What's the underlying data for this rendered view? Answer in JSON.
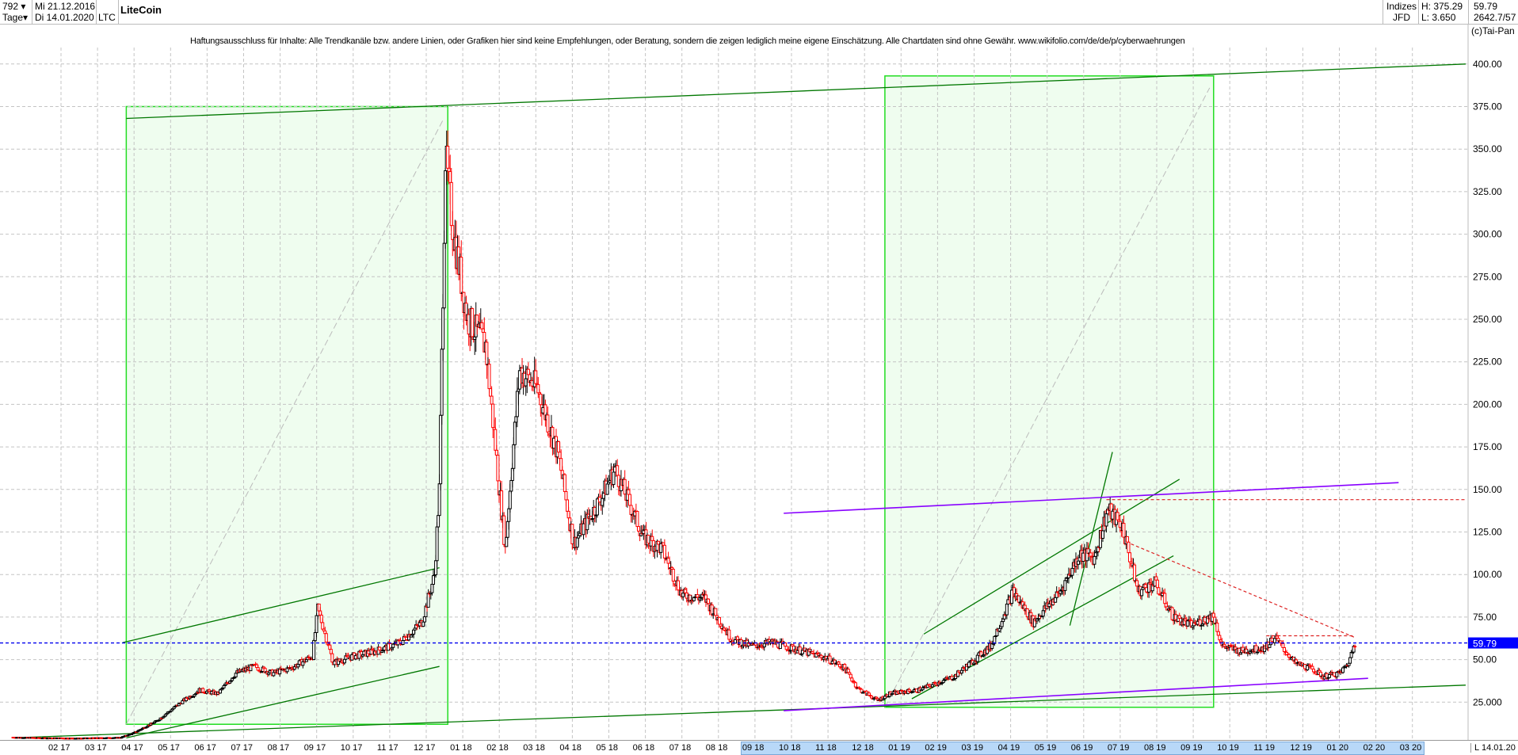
{
  "header": {
    "count": "792",
    "period": "Tage",
    "start_date": "Mi 21.12.2016",
    "end_date": "Di 14.01.2020",
    "symbol": "LTC",
    "title": "LiteCoin",
    "market": "Indizes",
    "exchange": "JFD",
    "high": "H: 375.29",
    "low": "L: 3.650",
    "last": "59.79",
    "extra": "2642.7/57",
    "copyright": "(c)Tai-Pan"
  },
  "disclaimer": "Haftungsausschluss für Inhalte: Alle Trendkanäle bzw. andere Linien, oder Grafiken hier sind keine Empfehlungen, oder Beratung, sondern die zeigen lediglich meine eigene Einschätzung. Alle Chartdaten sind ohne Gewähr.  www.wikifolio.com/de/de/p/cyberwaehrungen",
  "footer": {
    "mode": "L",
    "date": "14.01.20"
  },
  "colors": {
    "up": "#000000",
    "down": "#ff0000",
    "box_fill": "#effdef",
    "box_border": "#22dd22",
    "trend": "#007700",
    "purple": "#8800ff",
    "last_line": "#0000ee",
    "price_tag": "#0000ff"
  },
  "chart_data": {
    "type": "candlestick",
    "title": "LiteCoin",
    "ylim": [
      0,
      400
    ],
    "yticks": [
      "25.000",
      "50.00",
      "75.00",
      "100.00",
      "125.00",
      "150.00",
      "175.00",
      "200.00",
      "225.00",
      "250.00",
      "275.00",
      "300.00",
      "325.00",
      "350.00",
      "375.00",
      "400.00"
    ],
    "xticks": [
      "02 17",
      "03 17",
      "04 17",
      "05 17",
      "06 17",
      "07 17",
      "08 17",
      "09 17",
      "10 17",
      "11 17",
      "12 17",
      "01 18",
      "02 18",
      "03 18",
      "04 18",
      "05 18",
      "06 18",
      "07 18",
      "08 18",
      "09 18",
      "10 18",
      "11 18",
      "12 18",
      "01 19",
      "02 19",
      "03 19",
      "04 19",
      "05 19",
      "06 19",
      "07 19",
      "08 19",
      "09 19",
      "10 19",
      "11 19",
      "12 19",
      "01 20",
      "02 20",
      "03 20"
    ],
    "grid": true,
    "last_price": 59.79,
    "high": 375.29,
    "low": 3.65,
    "closes": [
      [
        "2016-12-21",
        4.4
      ],
      [
        "2017-01-15",
        4.0
      ],
      [
        "2017-02-15",
        3.8
      ],
      [
        "2017-03-20",
        4.2
      ],
      [
        "2017-04-01",
        7
      ],
      [
        "2017-04-20",
        14
      ],
      [
        "2017-05-10",
        25
      ],
      [
        "2017-05-25",
        32
      ],
      [
        "2017-06-10",
        30
      ],
      [
        "2017-06-25",
        42
      ],
      [
        "2017-07-10",
        46
      ],
      [
        "2017-07-25",
        42
      ],
      [
        "2017-08-10",
        45
      ],
      [
        "2017-08-28",
        52
      ],
      [
        "2017-09-02",
        80
      ],
      [
        "2017-09-15",
        48
      ],
      [
        "2017-10-01",
        52
      ],
      [
        "2017-10-20",
        55
      ],
      [
        "2017-11-10",
        60
      ],
      [
        "2017-11-28",
        72
      ],
      [
        "2017-12-08",
        100
      ],
      [
        "2017-12-12",
        150
      ],
      [
        "2017-12-17",
        345
      ],
      [
        "2017-12-24",
        300
      ],
      [
        "2018-01-05",
        250
      ],
      [
        "2018-01-20",
        235
      ],
      [
        "2018-02-06",
        115
      ],
      [
        "2018-02-18",
        220
      ],
      [
        "2018-03-02",
        210
      ],
      [
        "2018-03-20",
        170
      ],
      [
        "2018-04-02",
        118
      ],
      [
        "2018-04-25",
        145
      ],
      [
        "2018-05-06",
        162
      ],
      [
        "2018-05-30",
        122
      ],
      [
        "2018-06-15",
        115
      ],
      [
        "2018-07-01",
        88
      ],
      [
        "2018-07-20",
        86
      ],
      [
        "2018-08-12",
        62
      ],
      [
        "2018-08-28",
        58
      ],
      [
        "2018-09-15",
        60
      ],
      [
        "2018-10-05",
        56
      ],
      [
        "2018-10-30",
        51
      ],
      [
        "2018-11-15",
        45
      ],
      [
        "2018-11-26",
        33
      ],
      [
        "2018-12-12",
        26
      ],
      [
        "2018-12-22",
        30
      ],
      [
        "2019-01-15",
        32
      ],
      [
        "2019-02-15",
        40
      ],
      [
        "2019-03-15",
        58
      ],
      [
        "2019-04-03",
        90
      ],
      [
        "2019-04-20",
        72
      ],
      [
        "2019-05-12",
        90
      ],
      [
        "2019-05-28",
        112
      ],
      [
        "2019-06-10",
        110
      ],
      [
        "2019-06-21",
        138
      ],
      [
        "2019-07-03",
        128
      ],
      [
        "2019-07-16",
        90
      ],
      [
        "2019-07-30",
        95
      ],
      [
        "2019-08-15",
        75
      ],
      [
        "2019-08-30",
        70
      ],
      [
        "2019-09-18",
        76
      ],
      [
        "2019-09-25",
        58
      ],
      [
        "2019-10-10",
        55
      ],
      [
        "2019-10-30",
        57
      ],
      [
        "2019-11-08",
        63
      ],
      [
        "2019-11-25",
        48
      ],
      [
        "2019-12-10",
        44
      ],
      [
        "2019-12-18",
        40
      ],
      [
        "2020-01-01",
        42
      ],
      [
        "2020-01-08",
        47
      ],
      [
        "2020-01-14",
        59.79
      ]
    ],
    "drawings": {
      "boxes": [
        {
          "from": "2017-03-25",
          "to": "2017-12-19",
          "low": 12,
          "high": 375
        },
        {
          "from": "2018-12-18",
          "to": "2019-09-18",
          "low": 22,
          "high": 393
        }
      ],
      "green_lines": [
        {
          "p1": [
            "2017-03-25",
            368
          ],
          "p2": [
            "2020-04-15",
            400
          ]
        },
        {
          "p1": [
            "2016-12-21",
            4
          ],
          "p2": [
            "2020-04-15",
            35
          ]
        },
        {
          "p1": [
            "2017-03-22",
            60
          ],
          "p2": [
            "2017-12-12",
            104
          ]
        },
        {
          "p1": [
            "2017-03-25",
            4
          ],
          "p2": [
            "2017-12-12",
            46
          ]
        },
        {
          "p1": [
            "2019-01-20",
            65
          ],
          "p2": [
            "2019-08-20",
            156
          ]
        },
        {
          "p1": [
            "2019-01-10",
            27
          ],
          "p2": [
            "2019-08-15",
            111
          ]
        },
        {
          "p1": [
            "2019-05-20",
            70
          ],
          "p2": [
            "2019-06-25",
            172
          ]
        }
      ],
      "purple_lines": [
        {
          "p1": [
            "2018-09-25",
            136
          ],
          "p2": [
            "2020-02-20",
            154
          ]
        },
        {
          "p1": [
            "2018-09-25",
            20
          ],
          "p2": [
            "2020-01-25",
            39
          ]
        }
      ],
      "red_dotted": [
        {
          "p1": [
            "2019-06-20",
            144
          ],
          "p2": [
            "2020-04-15",
            144
          ]
        },
        {
          "p1": [
            "2019-07-10",
            118
          ],
          "p2": [
            "2020-01-14",
            63
          ]
        },
        {
          "p1": [
            "2019-11-01",
            64
          ],
          "p2": [
            "2020-01-14",
            64
          ]
        }
      ]
    }
  }
}
